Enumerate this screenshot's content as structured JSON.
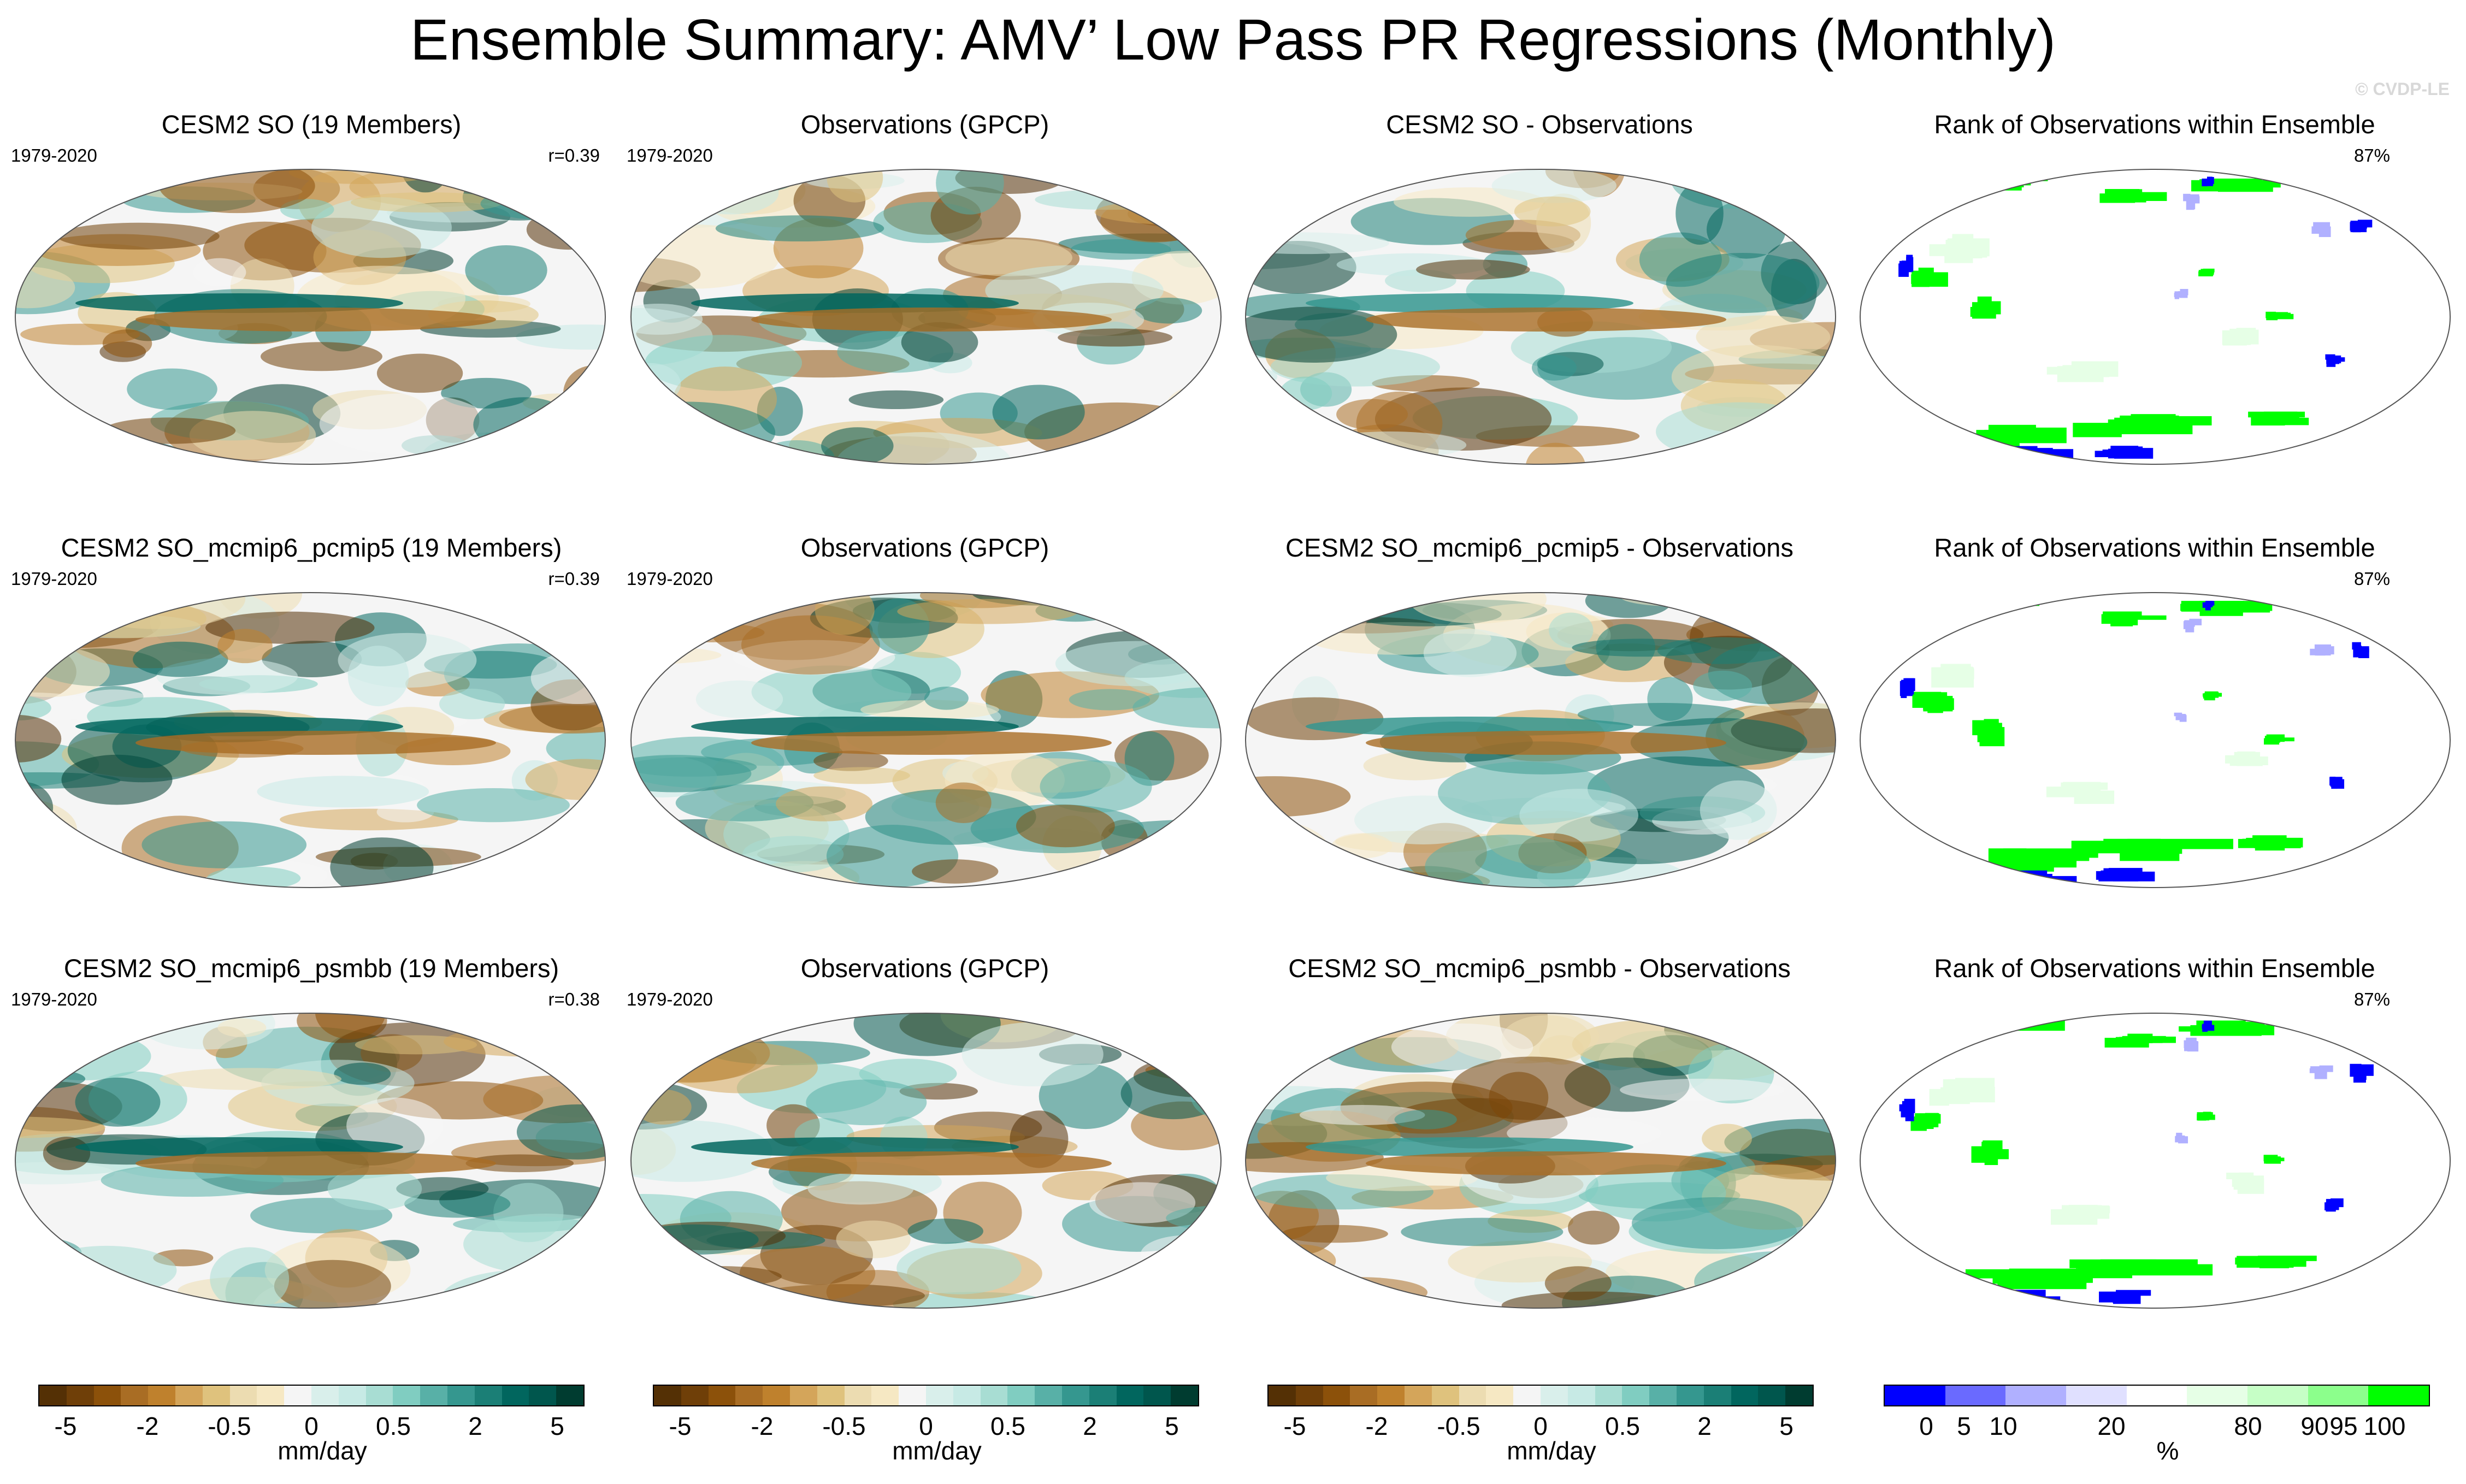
{
  "title": "Ensemble Summary: AMV’ Low Pass PR Regressions (Monthly)",
  "watermark": "© CVDP-LE",
  "rows": [
    {
      "model_title": "CESM2 SO (19 Members)",
      "years": "1979-2020",
      "r": "r=0.39",
      "obs_title": "Observations (GPCP)",
      "obs_years": "1979-2020",
      "diff_title": "CESM2 SO - Observations",
      "rank_title": "Rank of Observations within Ensemble",
      "rank_pct": "87%"
    },
    {
      "model_title": "CESM2 SO_mcmip6_pcmip5 (19 Members)",
      "years": "1979-2020",
      "r": "r=0.39",
      "obs_title": "Observations (GPCP)",
      "obs_years": "1979-2020",
      "diff_title": "CESM2 SO_mcmip6_pcmip5 - Observations",
      "rank_title": "Rank of Observations within Ensemble",
      "rank_pct": "87%"
    },
    {
      "model_title": "CESM2 SO_mcmip6_psmbb (19 Members)",
      "years": "1979-2020",
      "r": "r=0.38",
      "obs_title": "Observations (GPCP)",
      "obs_years": "1979-2020",
      "diff_title": "CESM2 SO_mcmip6_psmbb - Observations",
      "rank_title": "Rank of Observations within Ensemble",
      "rank_pct": "87%"
    }
  ],
  "colorbars": {
    "pr": {
      "colors": [
        "#543005",
        "#6f3f08",
        "#8c510a",
        "#a96d24",
        "#bf812d",
        "#d4a55a",
        "#dfc27d",
        "#ecdcb1",
        "#f6e8c3",
        "#f5f5f5",
        "#d9efeb",
        "#c7eae5",
        "#a8ddd3",
        "#80cdc1",
        "#58b0a7",
        "#35978f",
        "#1b7f76",
        "#01665e",
        "#00564d",
        "#003c30"
      ],
      "ticks": [
        "-5",
        "-2",
        "-0.5",
        "0",
        "0.5",
        "2",
        "5"
      ],
      "unit": "mm/day"
    },
    "rank": {
      "colors": [
        "#0000ff",
        "#6a6aff",
        "#b0b0ff",
        "#e0e0ff",
        "#ffffff",
        "#e6ffe6",
        "#c6ffc6",
        "#8cff8c",
        "#00ff00"
      ],
      "ticks": [
        "0",
        "5",
        "10",
        "20",
        "80",
        "90",
        "95",
        "100"
      ],
      "unit": "%"
    }
  }
}
